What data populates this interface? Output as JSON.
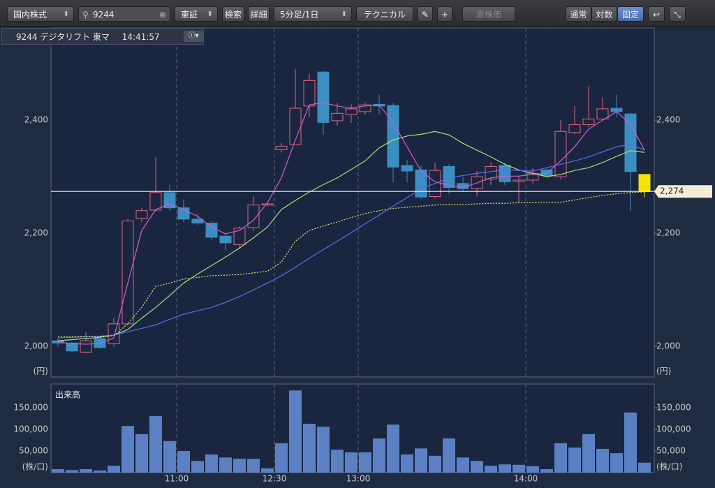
{
  "toolbar": {
    "market": "国内株式",
    "search": "9244",
    "exchange": "東証",
    "search_button": "検索",
    "detail_button": "詳細",
    "period": "5分足/1日",
    "technical": "テクニカル",
    "original_price": "原株価",
    "scale_normal": "通常",
    "scale_log": "対数",
    "scale_fixed": "固定"
  },
  "info": {
    "symbol": "9244 デジタリフト 東マ",
    "time": "14:41:57"
  },
  "chart_data": [
    {
      "type": "candlestick",
      "categories": [
        null,
        null,
        null,
        null,
        null,
        null,
        null,
        null,
        null,
        "11:00",
        null,
        null,
        null,
        null,
        null,
        null,
        "12:30",
        null,
        null,
        null,
        null,
        null,
        "13:00",
        null,
        null,
        null,
        null,
        null,
        null,
        null,
        null,
        null,
        null,
        null,
        "14:00",
        null,
        null,
        null,
        null,
        null,
        null,
        null,
        null
      ],
      "open": [
        2010,
        2006,
        1990,
        2014,
        2005,
        2040,
        2226,
        2241,
        2272,
        2245,
        2225,
        2218,
        2195,
        2180,
        2210,
        2250,
        2348,
        2357,
        2425,
        2485,
        2399,
        2410,
        2415,
        2428,
        2426,
        2320,
        2312,
        2265,
        2318,
        2288,
        2279,
        2296,
        2320,
        2292,
        2294,
        2312,
        2300,
        2378,
        2392,
        2402,
        2421,
        2411,
        2304
      ],
      "high": [
        2015,
        2008,
        2025,
        2018,
        2050,
        2225,
        2245,
        2335,
        2285,
        2260,
        2235,
        2222,
        2198,
        2212,
        2265,
        2255,
        2360,
        2490,
        2482,
        2487,
        2430,
        2428,
        2432,
        2445,
        2430,
        2330,
        2320,
        2325,
        2322,
        2300,
        2310,
        2325,
        2325,
        2300,
        2315,
        2315,
        2400,
        2425,
        2460,
        2440,
        2445,
        2413,
        2305
      ],
      "low": [
        2000,
        1990,
        1988,
        1996,
        2000,
        2038,
        2220,
        2238,
        2240,
        2220,
        2215,
        2188,
        2170,
        2175,
        2205,
        2248,
        2343,
        2357,
        2405,
        2375,
        2390,
        2395,
        2410,
        2410,
        2290,
        2290,
        2260,
        2262,
        2270,
        2275,
        2265,
        2285,
        2285,
        2255,
        2288,
        2298,
        2295,
        2375,
        2388,
        2400,
        2405,
        2240,
        2264
      ],
      "close": [
        2006,
        1992,
        2010,
        1998,
        2040,
        2222,
        2240,
        2272,
        2245,
        2225,
        2218,
        2193,
        2183,
        2209,
        2250,
        2252,
        2354,
        2421,
        2470,
        2396,
        2412,
        2420,
        2427,
        2425,
        2317,
        2310,
        2264,
        2311,
        2281,
        2279,
        2300,
        2318,
        2291,
        2294,
        2306,
        2302,
        2380,
        2392,
        2402,
        2420,
        2415,
        2309,
        2274
      ],
      "up_color": "#e0647e",
      "down_color": "#3b8ec2",
      "last_color": "#f2e400",
      "series": [
        {
          "color": "#d85ad0",
          "style": "solid",
          "values": [
            2008,
            2005,
            2004,
            2005,
            2015,
            2112,
            2205,
            2242,
            2252,
            2242,
            2230,
            2211,
            2199,
            2205,
            2223,
            2254,
            2298,
            2365,
            2427,
            2431,
            2425,
            2421,
            2425,
            2427,
            2396,
            2353,
            2310,
            2291,
            2285,
            2281,
            2289,
            2298,
            2301,
            2301,
            2304,
            2306,
            2328,
            2353,
            2384,
            2400,
            2415,
            2393,
            2347
          ]
        },
        {
          "color": "#a6e07a",
          "style": "solid",
          "values": [
            2010,
            2012,
            2014,
            2016,
            2020,
            2030,
            2050,
            2069,
            2090,
            2112,
            2128,
            2143,
            2158,
            2174,
            2192,
            2211,
            2242,
            2258,
            2273,
            2286,
            2298,
            2313,
            2328,
            2351,
            2365,
            2372,
            2375,
            2380,
            2374,
            2359,
            2347,
            2335,
            2322,
            2312,
            2306,
            2300,
            2304,
            2311,
            2316,
            2325,
            2336,
            2346,
            2343
          ]
        },
        {
          "color": "#5d6cf0",
          "style": "solid",
          "values": [
            2015,
            2016,
            2017,
            2018,
            2020,
            2026,
            2032,
            2038,
            2048,
            2057,
            2063,
            2069,
            2078,
            2088,
            2100,
            2112,
            2125,
            2140,
            2156,
            2171,
            2186,
            2201,
            2217,
            2232,
            2248,
            2263,
            2279,
            2288,
            2298,
            2302,
            2306,
            2309,
            2312,
            2311,
            2310,
            2316,
            2322,
            2328,
            2335,
            2344,
            2353,
            2357,
            2347
          ]
        },
        {
          "color": "#e8e070",
          "style": "dotted",
          "values": [
            2017,
            2017,
            2018,
            2018,
            2019,
            2040,
            2069,
            2106,
            2112,
            2119,
            2122,
            2125,
            2126,
            2127,
            2130,
            2133,
            2149,
            2186,
            2205,
            2213,
            2220,
            2228,
            2235,
            2240,
            2244,
            2246,
            2248,
            2250,
            2251,
            2251,
            2252,
            2253,
            2253,
            2254,
            2254,
            2255,
            2255,
            2259,
            2263,
            2267,
            2270,
            2272,
            2273
          ]
        }
      ],
      "last_price": {
        "value": 2274,
        "label": "2,274"
      },
      "ylim": [
        1946,
        2563
      ],
      "yticks": [
        {
          "value": 2000,
          "label": "2,000"
        },
        {
          "value": 2200,
          "label": "2,200"
        },
        {
          "value": 2400,
          "label": "2,400"
        }
      ],
      "y_label": "(円)",
      "grid": true
    },
    {
      "type": "bar",
      "title": "出来高",
      "color": "#5b80c4",
      "values": [
        8000,
        6000,
        8000,
        5000,
        16000,
        108000,
        89000,
        131000,
        73000,
        50000,
        27000,
        42000,
        35000,
        32000,
        32000,
        10000,
        68000,
        190000,
        113000,
        106000,
        53000,
        47000,
        47000,
        79000,
        111000,
        42000,
        56000,
        39000,
        79000,
        35000,
        27000,
        16000,
        19000,
        18000,
        15000,
        8000,
        68000,
        58000,
        89000,
        55000,
        45000,
        139000,
        23000
      ],
      "ylim": [
        0,
        205000
      ],
      "yticks": [
        {
          "value": 50000,
          "label": "50,000"
        },
        {
          "value": 100000,
          "label": "100,000"
        },
        {
          "value": 150000,
          "label": "150,000"
        }
      ],
      "y_label": "(株/口)"
    }
  ]
}
